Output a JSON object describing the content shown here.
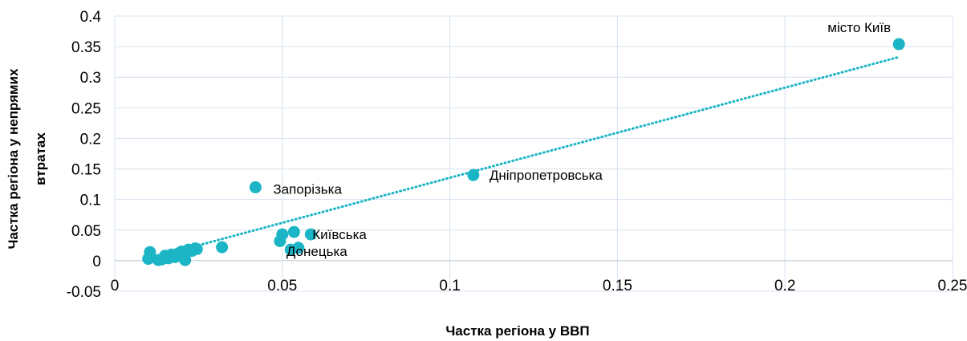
{
  "chart_data": {
    "type": "scatter",
    "xlabel": "Частка регіона у ВВП",
    "ylabel": [
      "Частка регіона у непрямих",
      "втратах"
    ],
    "xlim": [
      0,
      0.25
    ],
    "ylim": [
      -0.05,
      0.4
    ],
    "x_ticks": [
      "0",
      "0.05",
      "0.1",
      "0.15",
      "0.2",
      "0.25"
    ],
    "y_ticks": [
      "-0.05",
      "0",
      "0.05",
      "0.1",
      "0.15",
      "0.2",
      "0.25",
      "0.3",
      "0.35",
      "0.4"
    ],
    "grid": "vertical and horizontal",
    "marker_color": "#1BB5C5",
    "trendline": {
      "style": "dotted",
      "color": "#1BB5C5",
      "x": [
        0.01,
        0.234
      ],
      "y": [
        0.003,
        0.333
      ]
    },
    "points": [
      {
        "x": 0.01,
        "y": 0.003
      },
      {
        "x": 0.0105,
        "y": 0.014
      },
      {
        "x": 0.013,
        "y": 0.001
      },
      {
        "x": 0.014,
        "y": 0.002
      },
      {
        "x": 0.015,
        "y": 0.008
      },
      {
        "x": 0.016,
        "y": 0.004
      },
      {
        "x": 0.017,
        "y": 0.01
      },
      {
        "x": 0.018,
        "y": 0.006
      },
      {
        "x": 0.019,
        "y": 0.012
      },
      {
        "x": 0.02,
        "y": 0.015
      },
      {
        "x": 0.021,
        "y": 0.001
      },
      {
        "x": 0.022,
        "y": 0.018
      },
      {
        "x": 0.023,
        "y": 0.016
      },
      {
        "x": 0.024,
        "y": 0.02
      },
      {
        "x": 0.0245,
        "y": 0.019
      },
      {
        "x": 0.032,
        "y": 0.022
      },
      {
        "x": 0.042,
        "y": 0.12,
        "label": "Запорізька"
      },
      {
        "x": 0.0493,
        "y": 0.032
      },
      {
        "x": 0.05,
        "y": 0.043
      },
      {
        "x": 0.0525,
        "y": 0.018
      },
      {
        "x": 0.0535,
        "y": 0.047
      },
      {
        "x": 0.0548,
        "y": 0.021,
        "label": "Донецька"
      },
      {
        "x": 0.0585,
        "y": 0.043,
        "label": "Київська"
      },
      {
        "x": 0.107,
        "y": 0.14,
        "label": "Дніпропетровська"
      },
      {
        "x": 0.234,
        "y": 0.354,
        "label": "місто Київ"
      }
    ]
  }
}
